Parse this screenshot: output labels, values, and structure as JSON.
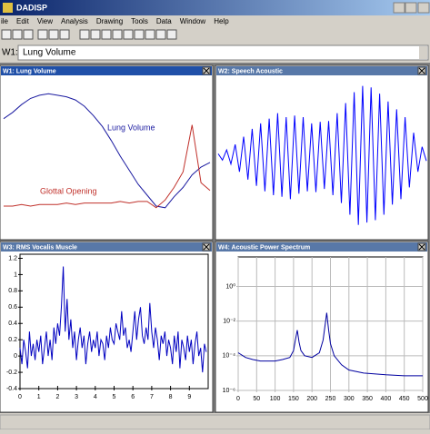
{
  "app": {
    "title": "DADISP"
  },
  "menu": [
    "ile",
    "Edit",
    "View",
    "Analysis",
    "Drawing",
    "Tools",
    "Data",
    "Window",
    "Help"
  ],
  "command": {
    "label": "W1:",
    "value": "Lung Volume"
  },
  "chart_data": [
    {
      "type": "line",
      "title": "W1: Lung Volume",
      "ylim": [
        0,
        1
      ],
      "series": [
        {
          "name": "Lung Volume",
          "color": "#1a1aa0",
          "values": [
            0.74,
            0.78,
            0.83,
            0.87,
            0.89,
            0.9,
            0.89,
            0.88,
            0.86,
            0.82,
            0.76,
            0.69,
            0.6,
            0.5,
            0.41,
            0.32,
            0.25,
            0.18,
            0.17,
            0.24,
            0.3,
            0.38,
            0.43,
            0.46
          ]
        },
        {
          "name": "Glottal Opening",
          "color": "#c0302a",
          "values": [
            0.18,
            0.18,
            0.19,
            0.18,
            0.19,
            0.19,
            0.19,
            0.2,
            0.19,
            0.2,
            0.2,
            0.2,
            0.2,
            0.21,
            0.2,
            0.21,
            0.21,
            0.17,
            0.22,
            0.3,
            0.4,
            0.7,
            0.33,
            0.28
          ]
        }
      ]
    },
    {
      "type": "line",
      "title": "W2: Speech Acoustic",
      "ylim": [
        -1,
        1
      ],
      "series": [
        {
          "color": "#0000ff",
          "values": [
            0.03,
            -0.05,
            0.08,
            -0.1,
            0.15,
            -0.2,
            0.25,
            -0.3,
            0.35,
            -0.38,
            0.42,
            -0.45,
            0.48,
            -0.5,
            0.55,
            -0.52,
            0.5,
            -0.55,
            0.52,
            -0.48,
            0.5,
            -0.45,
            0.42,
            -0.46,
            0.44,
            -0.42,
            0.45,
            -0.5,
            0.55,
            -0.6,
            0.68,
            -0.75,
            0.82,
            -0.88,
            0.9,
            -0.85,
            0.88,
            -0.82,
            0.8,
            -0.75,
            0.7,
            -0.62,
            0.6,
            -0.55,
            0.5,
            -0.4,
            0.3,
            -0.2,
            0.12,
            -0.06
          ]
        }
      ]
    },
    {
      "type": "line",
      "title": "W3: RMS Vocalis Muscle",
      "xlim": [
        0,
        10
      ],
      "ylim": [
        -0.4,
        1.25
      ],
      "xticks": [
        0,
        1,
        2,
        3,
        4,
        5,
        6,
        7,
        8,
        9
      ],
      "yticks": [
        -0.4,
        -0.2,
        0,
        0.2,
        0.4,
        0.6,
        0.8,
        1,
        1.2
      ],
      "x": [
        0,
        0.1,
        0.2,
        0.3,
        0.4,
        0.5,
        0.6,
        0.7,
        0.8,
        0.9,
        1,
        1.1,
        1.2,
        1.3,
        1.4,
        1.5,
        1.6,
        1.7,
        1.8,
        1.9,
        2,
        2.1,
        2.2,
        2.3,
        2.4,
        2.5,
        2.6,
        2.7,
        2.8,
        2.9,
        3,
        3.1,
        3.2,
        3.3,
        3.4,
        3.5,
        3.6,
        3.7,
        3.8,
        3.9,
        4,
        4.1,
        4.2,
        4.3,
        4.4,
        4.5,
        4.6,
        4.7,
        4.8,
        4.9,
        5,
        5.1,
        5.2,
        5.3,
        5.4,
        5.5,
        5.6,
        5.7,
        5.8,
        5.9,
        6,
        6.1,
        6.2,
        6.3,
        6.4,
        6.5,
        6.6,
        6.7,
        6.8,
        6.9,
        7,
        7.1,
        7.2,
        7.3,
        7.4,
        7.5,
        7.6,
        7.7,
        7.8,
        7.9,
        8,
        8.1,
        8.2,
        8.3,
        8.4,
        8.5,
        8.6,
        8.7,
        8.8,
        8.9,
        9,
        9.1,
        9.2,
        9.3,
        9.4,
        9.5,
        9.6,
        9.7,
        9.8,
        9.9
      ],
      "series": [
        {
          "color": "#0000c0",
          "values": [
            0.1,
            -0.1,
            0.2,
            0.05,
            -0.15,
            0.3,
            0,
            0.15,
            -0.05,
            0.2,
            0.05,
            0.25,
            -0.1,
            0.1,
            0.3,
            0,
            0.2,
            -0.05,
            0.35,
            0.15,
            0.4,
            0.25,
            0.6,
            1.1,
            0.3,
            0.7,
            0.2,
            0.45,
            0.1,
            0.3,
            -0.05,
            0.2,
            0.35,
            0.1,
            0.25,
            -0.1,
            0.15,
            0.3,
            0.05,
            0.2,
            0.1,
            0.3,
            0,
            0.2,
            0.15,
            -0.05,
            0.25,
            0.1,
            0.35,
            0.2,
            0.15,
            0.4,
            0.3,
            0.2,
            0.55,
            0.25,
            0.35,
            0.1,
            0.2,
            0.05,
            0.3,
            0.55,
            0.2,
            0.45,
            0.6,
            0.25,
            0.15,
            0.35,
            0.2,
            0.65,
            0.3,
            0.1,
            0.35,
            0.2,
            -0.05,
            0.25,
            0.15,
            0.3,
            0,
            0.2,
            0.1,
            -0.1,
            0.25,
            0.05,
            0.3,
            -0.15,
            0.2,
            0.1,
            -0.05,
            0.25,
            0.05,
            0.2,
            -0.1,
            0.15,
            0.3,
            0,
            0.1,
            -0.2,
            0.15,
            0.05
          ]
        }
      ]
    },
    {
      "type": "line",
      "title": "W4: Acoustic Power Spectrum",
      "ylog": true,
      "grid": true,
      "xlim": [
        0,
        500
      ],
      "ylim": [
        1e-06,
        50
      ],
      "xticks": [
        0,
        50,
        100,
        150,
        200,
        250,
        300,
        350,
        400,
        450,
        500
      ],
      "yticks": [
        {
          "value": 1e-06,
          "label": "10⁻⁶"
        },
        {
          "value": 0.0001,
          "label": "10⁻⁴"
        },
        {
          "value": 0.01,
          "label": "10⁻²"
        },
        {
          "value": 1,
          "label": "10⁰"
        }
      ],
      "x": [
        0,
        20,
        40,
        60,
        80,
        100,
        120,
        140,
        150,
        155,
        160,
        165,
        170,
        180,
        200,
        220,
        230,
        240,
        245,
        250,
        260,
        280,
        300,
        340,
        400,
        450,
        500
      ],
      "series": [
        {
          "color": "#0000a0",
          "values": [
            0.00015,
            8e-05,
            6e-05,
            5e-05,
            5e-05,
            5e-05,
            6e-05,
            8e-05,
            0.0002,
            0.0008,
            0.003,
            0.0006,
            0.0002,
            0.0001,
            8e-05,
            0.00015,
            0.0008,
            0.03,
            0.003,
            0.0005,
            0.0001,
            3e-05,
            1.5e-05,
            1e-05,
            8e-06,
            7e-06,
            7e-06
          ]
        }
      ]
    }
  ]
}
